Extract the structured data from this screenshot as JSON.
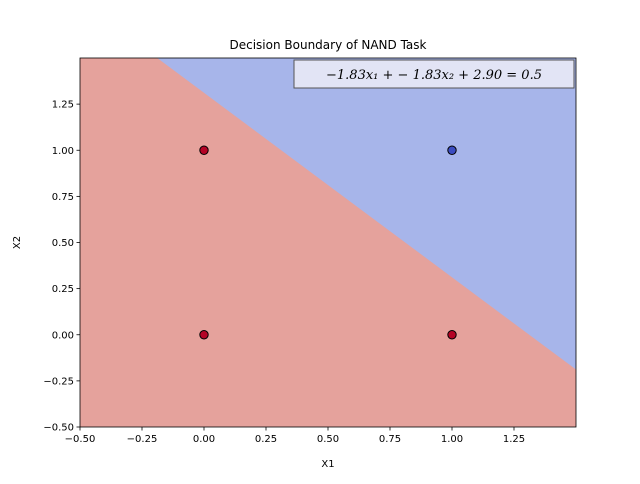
{
  "chart_data": {
    "type": "scatter",
    "title": "Decision Boundary of NAND Task",
    "xlabel": "X1",
    "ylabel": "X2",
    "xlim": [
      -0.5,
      1.5
    ],
    "ylim": [
      -0.5,
      1.5
    ],
    "xticks": [
      -0.5,
      -0.25,
      0.0,
      0.25,
      0.5,
      0.75,
      1.0,
      1.25
    ],
    "yticks": [
      -0.5,
      -0.25,
      0.0,
      0.25,
      0.5,
      0.75,
      1.0,
      1.25
    ],
    "xtick_labels": [
      "−0.50",
      "−0.25",
      "0.00",
      "0.25",
      "0.50",
      "0.75",
      "1.00",
      "1.25"
    ],
    "ytick_labels": [
      "−0.50",
      "−0.25",
      "0.00",
      "0.25",
      "0.50",
      "0.75",
      "1.00",
      "1.25"
    ],
    "points": [
      {
        "x": 0,
        "y": 0,
        "class": 1
      },
      {
        "x": 0,
        "y": 1,
        "class": 1
      },
      {
        "x": 1,
        "y": 0,
        "class": 1
      },
      {
        "x": 1,
        "y": 1,
        "class": 0
      }
    ],
    "boundary": {
      "w1": -1.83,
      "w2": -1.83,
      "b": 2.9,
      "threshold": 0.5
    },
    "equation_label": "−1.83x₁ + − 1.83x₂ + 2.90 = 0.5",
    "colors": {
      "region_class_1": "#e5a29c",
      "region_class_0": "#a7b5ea",
      "point_class_1": "#b40426",
      "point_class_0": "#3b4cc0",
      "point_edge": "#000000"
    },
    "grid": false,
    "annotation_placement": "top-right"
  }
}
